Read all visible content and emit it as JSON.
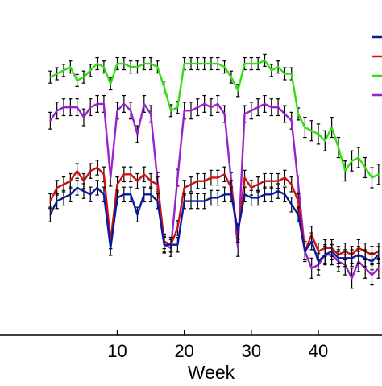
{
  "chart_data": {
    "type": "line",
    "xlabel": "Week",
    "ylabel": "",
    "title": "",
    "xlim": [
      -7.5,
      49.5
    ],
    "ylim": [
      0,
      100
    ],
    "x_ticks": [
      10,
      20,
      30,
      40
    ],
    "grid": false,
    "legend_position": "top-right",
    "series": [
      {
        "color": "#33dd11",
        "x": [
          0,
          1,
          2,
          3,
          4,
          5,
          6,
          7,
          8,
          9,
          10,
          11,
          12,
          13,
          14,
          15,
          16,
          17,
          18,
          19,
          20,
          21,
          22,
          23,
          24,
          25,
          26,
          27,
          28,
          29,
          30,
          31,
          32,
          33,
          34,
          35,
          36,
          37,
          38,
          39,
          40,
          41,
          42,
          43,
          44,
          45,
          46,
          47,
          48,
          49
        ],
        "y": [
          77,
          78,
          79,
          80,
          76,
          77,
          79,
          81,
          80,
          75,
          81,
          81,
          80,
          80,
          81,
          81,
          80,
          74,
          67,
          68,
          81,
          81,
          81,
          81,
          81,
          81,
          80,
          77,
          73,
          81,
          81,
          81,
          82,
          79,
          80,
          78,
          78,
          66,
          62,
          61,
          60,
          58,
          62,
          56,
          49,
          52,
          53,
          50,
          47,
          48
        ],
        "err": [
          1.8,
          1.8,
          1.8,
          1.8,
          1.8,
          1.8,
          1.8,
          1.8,
          1.8,
          1.8,
          1.8,
          1.8,
          1.8,
          1.8,
          1.8,
          1.8,
          1.8,
          1.8,
          1.8,
          1.8,
          1.8,
          1.8,
          1.8,
          1.8,
          1.8,
          1.8,
          1.8,
          1.8,
          1.8,
          1.8,
          1.8,
          1.8,
          1.8,
          1.8,
          1.8,
          1.8,
          1.8,
          1.8,
          3,
          3,
          3,
          3,
          3,
          3,
          3,
          3,
          3,
          3,
          3,
          3
        ]
      },
      {
        "color": "#9922cc",
        "x": [
          0,
          1,
          2,
          3,
          4,
          5,
          6,
          7,
          8,
          9,
          10,
          11,
          12,
          13,
          14,
          15,
          16,
          17,
          18,
          19,
          20,
          21,
          22,
          23,
          24,
          25,
          26,
          27,
          28,
          29,
          30,
          31,
          32,
          33,
          34,
          35,
          36,
          37,
          38,
          39,
          40,
          41,
          42,
          43,
          44,
          45,
          46,
          47,
          48,
          49
        ],
        "y": [
          64,
          67,
          68,
          68,
          68,
          65,
          68,
          69,
          69,
          47,
          67,
          69,
          67,
          60,
          69,
          66,
          46,
          27,
          26,
          47,
          67,
          67,
          68,
          69,
          68,
          69,
          66,
          46,
          26,
          66,
          67,
          68,
          69,
          68,
          68,
          66,
          64,
          45,
          25,
          20,
          21,
          24,
          24,
          22,
          21,
          17,
          22,
          20,
          18,
          20
        ],
        "err": [
          2.5,
          2.5,
          2.5,
          2.5,
          2.5,
          2.5,
          2.5,
          2.5,
          2.5,
          2.5,
          2.5,
          2.5,
          2.5,
          2.5,
          2.5,
          2.5,
          2.5,
          2.5,
          2.5,
          2.5,
          2.5,
          2.5,
          2.5,
          2.5,
          2.5,
          2.5,
          2.5,
          2.5,
          2.5,
          2.5,
          2.5,
          2.5,
          2.5,
          2.5,
          2.5,
          2.5,
          2.5,
          2.5,
          3,
          3,
          3,
          3,
          3,
          3,
          3,
          3,
          3,
          3,
          3,
          3
        ]
      },
      {
        "color": "#cc1111",
        "x": [
          0,
          1,
          2,
          3,
          4,
          5,
          6,
          7,
          8,
          9,
          10,
          11,
          12,
          13,
          14,
          15,
          16,
          17,
          18,
          19,
          20,
          21,
          22,
          23,
          24,
          25,
          26,
          27,
          28,
          29,
          30,
          31,
          32,
          33,
          34,
          35,
          36,
          37,
          38,
          39,
          40,
          41,
          42,
          43,
          44,
          45,
          46,
          47,
          48,
          49
        ],
        "y": [
          40,
          44,
          45,
          46,
          49,
          46,
          49,
          50,
          48,
          28,
          45,
          48,
          48,
          46,
          48,
          46,
          45,
          28,
          27,
          32,
          44,
          45,
          46,
          46,
          47,
          47,
          48,
          44,
          30,
          47,
          44,
          45,
          46,
          46,
          46,
          47,
          45,
          40,
          25,
          30,
          25,
          26,
          26,
          24,
          25,
          24,
          26,
          25,
          24,
          25
        ],
        "err": [
          2.2,
          2.2,
          2.2,
          2.2,
          2.2,
          2.2,
          2.2,
          2.2,
          2.2,
          2.2,
          2.2,
          2.2,
          2.2,
          2.2,
          2.2,
          2.2,
          2.2,
          2.2,
          2.2,
          2.2,
          2.2,
          2.2,
          2.2,
          2.2,
          2.2,
          2.2,
          2.2,
          2.2,
          2.2,
          2.2,
          2.2,
          2.2,
          2.2,
          2.2,
          2.2,
          2.2,
          2.2,
          2.2,
          2.5,
          2.5,
          2.5,
          2.5,
          2.5,
          2.5,
          2.5,
          2.5,
          2.5,
          2.5,
          2.5,
          2.5
        ]
      },
      {
        "color": "#0a1aa0",
        "x": [
          0,
          1,
          2,
          3,
          4,
          5,
          6,
          7,
          8,
          9,
          10,
          11,
          12,
          13,
          14,
          15,
          16,
          17,
          18,
          19,
          20,
          21,
          22,
          23,
          24,
          25,
          26,
          27,
          28,
          29,
          30,
          31,
          32,
          33,
          34,
          35,
          36,
          37,
          38,
          39,
          40,
          41,
          42,
          43,
          44,
          45,
          46,
          47,
          48,
          49
        ],
        "y": [
          36,
          40,
          41,
          42,
          44,
          43,
          42,
          44,
          42,
          26,
          41,
          42,
          42,
          36,
          42,
          42,
          40,
          27,
          27,
          27,
          40,
          40,
          40,
          40,
          41,
          41,
          42,
          42,
          31,
          42,
          41,
          41,
          42,
          42,
          43,
          42,
          39,
          36,
          25,
          28,
          22,
          24,
          25,
          23,
          23,
          23,
          24,
          23,
          22,
          24
        ],
        "err": [
          2.2,
          2.2,
          2.2,
          2.2,
          2.2,
          2.2,
          2.2,
          2.2,
          2.2,
          2.2,
          2.2,
          2.2,
          2.2,
          2.2,
          2.2,
          2.2,
          2.2,
          2.2,
          2.2,
          2.2,
          2.2,
          2.2,
          2.2,
          2.2,
          2.2,
          2.2,
          2.2,
          2.2,
          2.2,
          2.2,
          2.2,
          2.2,
          2.2,
          2.2,
          2.2,
          2.2,
          2.2,
          2.2,
          2.5,
          2.5,
          2.5,
          2.5,
          2.5,
          2.5,
          2.5,
          2.5,
          2.5,
          2.5,
          2.5,
          2.5
        ]
      }
    ]
  }
}
